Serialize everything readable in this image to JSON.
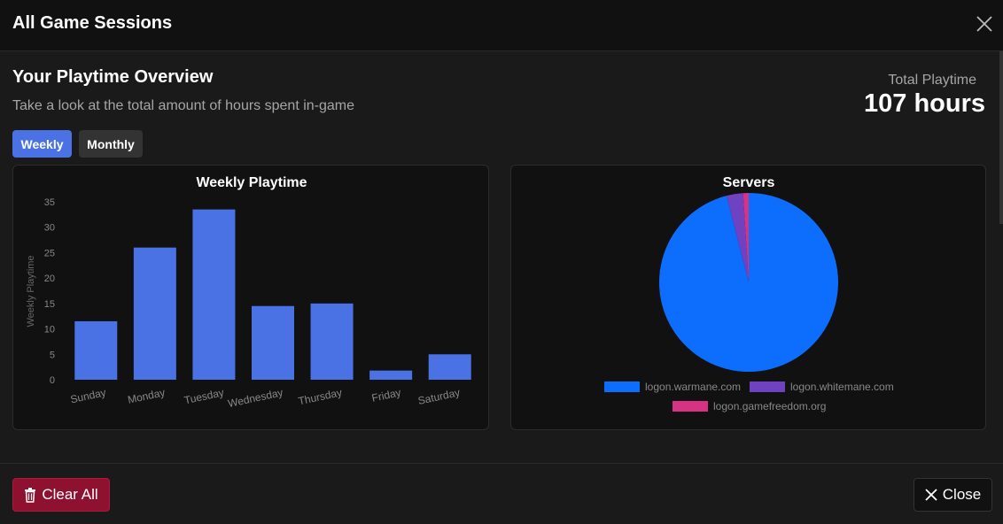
{
  "modal": {
    "title": "All Game Sessions"
  },
  "overview": {
    "title": "Your Playtime Overview",
    "subtitle": "Take a look at the total amount of hours spent in-game",
    "total_label": "Total Playtime",
    "total_value": "107 hours"
  },
  "tabs": [
    {
      "label": "Weekly",
      "active": true
    },
    {
      "label": "Monthly",
      "active": false
    }
  ],
  "footer": {
    "clear_label": "Clear All",
    "close_label": "Close"
  },
  "colors": {
    "accent": "#4a72e4",
    "danger": "#8e1230",
    "pie_blue": "#0d6efd",
    "pie_purple": "#6f42c1",
    "pie_pink": "#d63384"
  },
  "chart_data": [
    {
      "type": "bar",
      "title": "Weekly Playtime",
      "ylabel": "Weekly Playtime",
      "categories": [
        "Sunday",
        "Monday",
        "Tuesday",
        "Wednesday",
        "Thursday",
        "Friday",
        "Saturday"
      ],
      "values": [
        11.5,
        26,
        33.5,
        14.5,
        15,
        1.8,
        5
      ],
      "ylim": [
        0,
        35
      ],
      "yticks": [
        "0",
        "5",
        "10",
        "15",
        "20",
        "25",
        "30",
        "35"
      ],
      "grid": false
    },
    {
      "type": "pie",
      "title": "Servers",
      "labels": [
        "logon.warmane.com",
        "logon.whitemane.com",
        "logon.gamefreedom.org"
      ],
      "values": [
        96,
        3,
        1
      ],
      "legend": "bottom"
    }
  ]
}
